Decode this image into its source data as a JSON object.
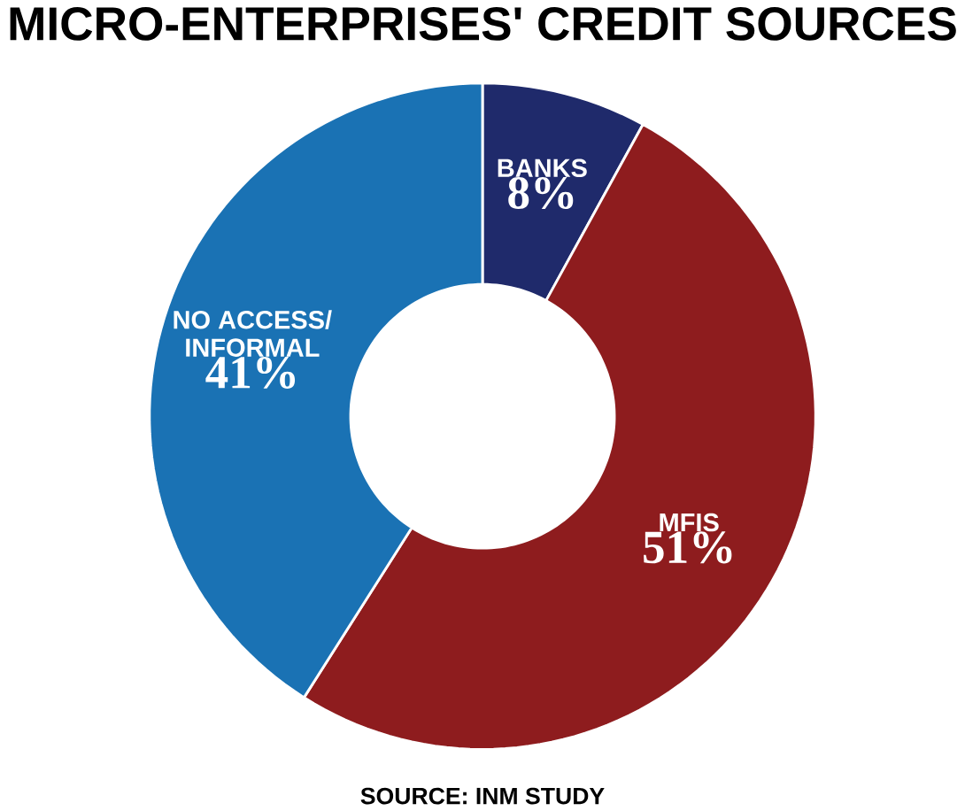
{
  "chart_data": {
    "type": "donut",
    "title": "MICRO-ENTERPRISES' CREDIT SOURCES",
    "categories": [
      "BANKS",
      "MFIS",
      "NO ACCESS/ INFORMAL"
    ],
    "values": [
      8,
      51,
      41
    ],
    "value_labels": [
      "8%",
      "51%",
      "41%"
    ],
    "colors": [
      "#1f2a6b",
      "#8e1c1e",
      "#1a72b4"
    ],
    "annotations": [
      "SOURCE: INM STUDY"
    ]
  }
}
